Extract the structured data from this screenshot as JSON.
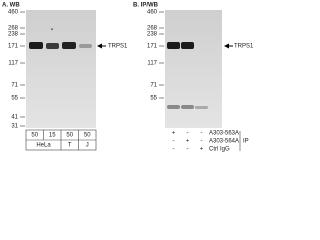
{
  "panel_a": {
    "label": "A. WB",
    "markers": [
      "460",
      "268",
      "238",
      "171",
      "117",
      "71",
      "55",
      "41",
      "31"
    ],
    "target": "TRPS1",
    "asterisk": "*",
    "amounts": [
      "50",
      "15",
      "50",
      "50"
    ],
    "cell_lines": [
      "HeLa",
      "T",
      "J"
    ]
  },
  "panel_b": {
    "label": "B. IP/WB",
    "markers": [
      "460",
      "268",
      "238",
      "171",
      "117",
      "71",
      "55"
    ],
    "target": "TRPS1",
    "rows": [
      {
        "name": "A303-563A",
        "marks": [
          "+",
          "-",
          "-"
        ]
      },
      {
        "name": "A303-564A",
        "marks": [
          "-",
          "+",
          "-"
        ]
      },
      {
        "name": "Ctrl IgG",
        "marks": [
          "-",
          "-",
          "+"
        ]
      }
    ],
    "ip_label": "IP"
  }
}
